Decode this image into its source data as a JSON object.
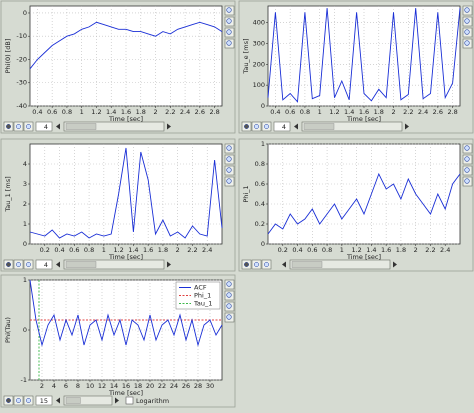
{
  "chart_data": [
    {
      "type": "line",
      "ylabel": "Phi(0) [dB]",
      "xlabel": "Time [sec]",
      "spin_value": "4",
      "grid": true,
      "x": [
        0.3,
        0.4,
        0.5,
        0.6,
        0.7,
        0.8,
        0.9,
        1.0,
        1.1,
        1.2,
        1.3,
        1.4,
        1.5,
        1.6,
        1.7,
        1.8,
        1.9,
        2.0,
        2.1,
        2.2,
        2.3,
        2.4,
        2.5,
        2.6,
        2.7,
        2.8,
        2.9
      ],
      "series": [
        {
          "color": "#1a2fd6",
          "values": [
            -24,
            -20,
            -17,
            -14,
            -12,
            -10,
            -9,
            -7,
            -6,
            -4,
            -5,
            -6,
            -7,
            -7,
            -8,
            -8,
            -9,
            -10,
            -8,
            -9,
            -7,
            -6,
            -5,
            -4,
            -5,
            -6,
            -8
          ]
        }
      ],
      "xlim": [
        0.3,
        2.9
      ],
      "xticks": [
        0.4,
        0.6,
        0.8,
        1,
        1.2,
        1.4,
        1.6,
        1.8,
        2,
        2.2,
        2.4,
        2.6,
        2.8
      ],
      "ylim": [
        -40,
        3
      ],
      "yticks": [
        -40,
        -30,
        -20,
        -10,
        0
      ]
    },
    {
      "type": "line",
      "ylabel": "Tau_e [ms]",
      "xlabel": "Time [sec]",
      "spin_value": "4",
      "grid": true,
      "x": [
        0.3,
        0.4,
        0.5,
        0.6,
        0.7,
        0.8,
        0.9,
        1.0,
        1.1,
        1.2,
        1.3,
        1.4,
        1.5,
        1.6,
        1.7,
        1.8,
        1.9,
        2.0,
        2.1,
        2.2,
        2.3,
        2.4,
        2.5,
        2.6,
        2.7,
        2.8,
        2.9
      ],
      "series": [
        {
          "color": "#1a2fd6",
          "values": [
            40,
            450,
            30,
            60,
            20,
            450,
            35,
            50,
            470,
            40,
            120,
            30,
            450,
            60,
            25,
            80,
            40,
            450,
            30,
            55,
            470,
            35,
            60,
            450,
            40,
            110,
            470
          ]
        }
      ],
      "xlim": [
        0.3,
        2.9
      ],
      "xticks": [
        0.4,
        0.6,
        0.8,
        1,
        1.2,
        1.4,
        1.6,
        1.8,
        2,
        2.2,
        2.4,
        2.6,
        2.8
      ],
      "ylim": [
        0,
        480
      ],
      "yticks": [
        0,
        100,
        200,
        300,
        400
      ]
    },
    {
      "type": "line",
      "ylabel": "Tau_1 [ms]",
      "xlabel": "Time [sec]",
      "spin_value": "4",
      "grid": true,
      "x": [
        0,
        0.1,
        0.2,
        0.3,
        0.4,
        0.5,
        0.6,
        0.7,
        0.8,
        0.9,
        1.0,
        1.1,
        1.2,
        1.3,
        1.4,
        1.5,
        1.6,
        1.7,
        1.8,
        1.9,
        2.0,
        2.1,
        2.2,
        2.3,
        2.4,
        2.5,
        2.6
      ],
      "series": [
        {
          "color": "#1a2fd6",
          "values": [
            0.6,
            0.5,
            0.4,
            0.7,
            0.3,
            0.5,
            0.4,
            0.6,
            0.3,
            0.5,
            0.4,
            0.5,
            2.5,
            4.8,
            0.6,
            4.6,
            3.2,
            0.5,
            1.2,
            0.4,
            0.6,
            0.3,
            0.9,
            0.5,
            0.4,
            4.2,
            0.8
          ]
        }
      ],
      "xlim": [
        0,
        2.6
      ],
      "xticks": [
        0.2,
        0.4,
        0.6,
        0.8,
        1,
        1.2,
        1.4,
        1.6,
        1.8,
        2,
        2.2,
        2.4
      ],
      "ylim": [
        0,
        5
      ],
      "yticks": [
        0,
        1,
        2,
        3,
        4
      ]
    },
    {
      "type": "line",
      "ylabel": "Phi_1",
      "xlabel": "Time [sec]",
      "grid": true,
      "x": [
        0,
        0.1,
        0.2,
        0.3,
        0.4,
        0.5,
        0.6,
        0.7,
        0.8,
        0.9,
        1.0,
        1.1,
        1.2,
        1.3,
        1.4,
        1.5,
        1.6,
        1.7,
        1.8,
        1.9,
        2.0,
        2.1,
        2.2,
        2.3,
        2.4,
        2.5,
        2.6
      ],
      "series": [
        {
          "color": "#1a2fd6",
          "values": [
            0.1,
            0.2,
            0.15,
            0.3,
            0.2,
            0.25,
            0.35,
            0.2,
            0.3,
            0.4,
            0.25,
            0.35,
            0.45,
            0.3,
            0.5,
            0.7,
            0.55,
            0.6,
            0.45,
            0.65,
            0.5,
            0.4,
            0.3,
            0.5,
            0.35,
            0.6,
            0.7
          ]
        }
      ],
      "xlim": [
        0,
        2.6
      ],
      "xticks": [
        0.2,
        0.4,
        0.6,
        0.8,
        1,
        1.2,
        1.4,
        1.6,
        1.8,
        2,
        2.2,
        2.4
      ],
      "ylim": [
        0,
        1
      ],
      "yticks": [
        0,
        0.2,
        0.4,
        0.6,
        0.8,
        1
      ]
    },
    {
      "type": "line",
      "ylabel": "Phi(Tau)",
      "xlabel": "Time [sec]",
      "spin_value": "15",
      "checkbox_label": "Logarithm",
      "grid": true,
      "x": [
        0,
        1,
        2,
        3,
        4,
        5,
        6,
        7,
        8,
        9,
        10,
        11,
        12,
        13,
        14,
        15,
        16,
        17,
        18,
        19,
        20,
        21,
        22,
        23,
        24,
        25,
        26,
        27,
        28,
        29,
        30,
        31,
        32
      ],
      "series": [
        {
          "name": "ACF",
          "color": "#1a2fd6",
          "values": [
            1,
            0.2,
            -0.3,
            0.1,
            0.3,
            -0.2,
            0.2,
            -0.1,
            0.3,
            -0.3,
            0.1,
            0.2,
            -0.2,
            0.3,
            -0.1,
            0.2,
            -0.3,
            0.2,
            0.1,
            -0.2,
            0.3,
            -0.2,
            0.1,
            0.2,
            -0.1,
            0.3,
            -0.2,
            0.2,
            -0.3,
            0.1,
            0.2,
            -0.1,
            0.1
          ]
        }
      ],
      "reference_lines": [
        {
          "name": "Phi_1",
          "color": "#e04040",
          "y": 0.2
        },
        {
          "name": "Tau_1",
          "color": "#3cb84a",
          "x": 1.5
        }
      ],
      "xlim": [
        0,
        32
      ],
      "xticks": [
        2,
        4,
        6,
        8,
        10,
        12,
        14,
        16,
        18,
        20,
        22,
        24,
        26,
        28,
        30
      ],
      "ylim": [
        -1,
        1
      ],
      "yticks": [
        -1,
        0,
        1
      ]
    }
  ]
}
